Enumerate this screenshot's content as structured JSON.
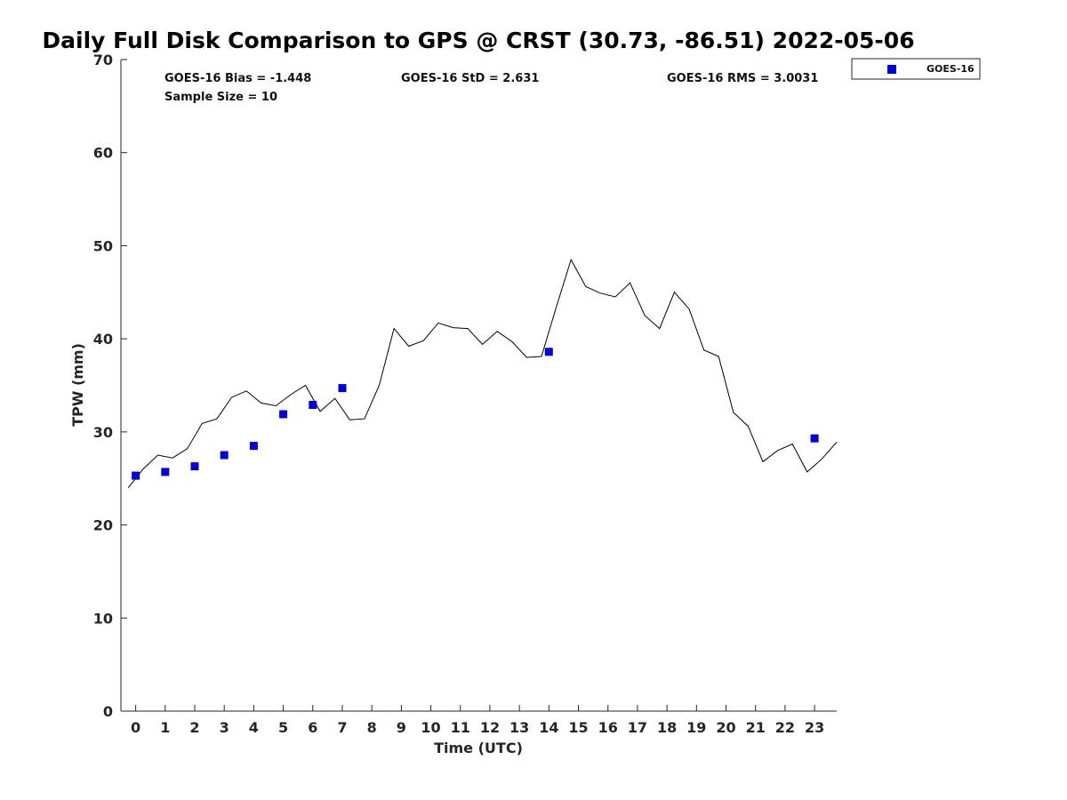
{
  "chart_data": {
    "type": "scatter",
    "title": "Daily Full Disk Comparison to GPS @ CRST (30.73, -86.51) 2022-05-06",
    "xlabel": "Time (UTC)",
    "ylabel": "TPW (mm)",
    "xlim": [
      -0.5,
      23.75
    ],
    "ylim": [
      0,
      70
    ],
    "xticks": [
      0,
      1,
      2,
      3,
      4,
      5,
      6,
      7,
      8,
      9,
      10,
      11,
      12,
      13,
      14,
      15,
      16,
      17,
      18,
      19,
      20,
      21,
      22,
      23
    ],
    "yticks": [
      0,
      10,
      20,
      30,
      40,
      50,
      60,
      70
    ],
    "grid": false,
    "legend_position": "top-right outside",
    "stats": {
      "bias": "GOES-16 Bias = -1.448",
      "sample_size": "Sample Size = 10",
      "std": "GOES-16 StD = 2.631",
      "rms": "GOES-16 RMS = 3.0031"
    },
    "series": [
      {
        "name": "GOES-16",
        "kind": "scatter",
        "color": "#0000dd",
        "x": [
          0,
          1,
          2,
          3,
          4,
          5,
          6,
          7,
          14,
          23
        ],
        "y": [
          25.3,
          25.7,
          26.3,
          27.5,
          28.5,
          31.9,
          32.9,
          34.7,
          38.6,
          29.3
        ]
      },
      {
        "kind": "line",
        "color": "#000000",
        "x": [
          -0.25,
          0.25,
          0.75,
          1.25,
          1.75,
          2.25,
          2.75,
          3.25,
          3.75,
          4.25,
          4.75,
          5.25,
          5.75,
          6.25,
          6.75,
          7.25,
          7.75,
          8.25,
          8.75,
          9.25,
          9.75,
          10.25,
          10.75,
          11.25,
          11.75,
          12.25,
          12.75,
          13.25,
          13.75,
          14.25,
          14.75,
          15.25,
          15.75,
          16.25,
          16.75,
          17.25,
          17.75,
          18.25,
          18.75,
          19.25,
          19.75,
          20.25,
          20.75,
          21.25,
          21.75,
          22.25,
          22.75,
          23.25,
          23.75
        ],
        "y": [
          24.0,
          26.0,
          27.5,
          27.2,
          28.2,
          30.9,
          31.4,
          33.7,
          34.4,
          33.1,
          32.8,
          34.0,
          35.0,
          32.2,
          33.6,
          31.3,
          31.4,
          35.0,
          41.1,
          39.2,
          39.8,
          41.7,
          41.2,
          41.1,
          39.4,
          40.8,
          39.7,
          38.0,
          38.1,
          43.4,
          48.5,
          45.6,
          44.9,
          44.5,
          46.0,
          42.5,
          41.1,
          45.0,
          43.2,
          38.8,
          38.1,
          32.1,
          30.6,
          26.8,
          28.0,
          28.7,
          25.7,
          27.1,
          28.9
        ]
      }
    ]
  }
}
